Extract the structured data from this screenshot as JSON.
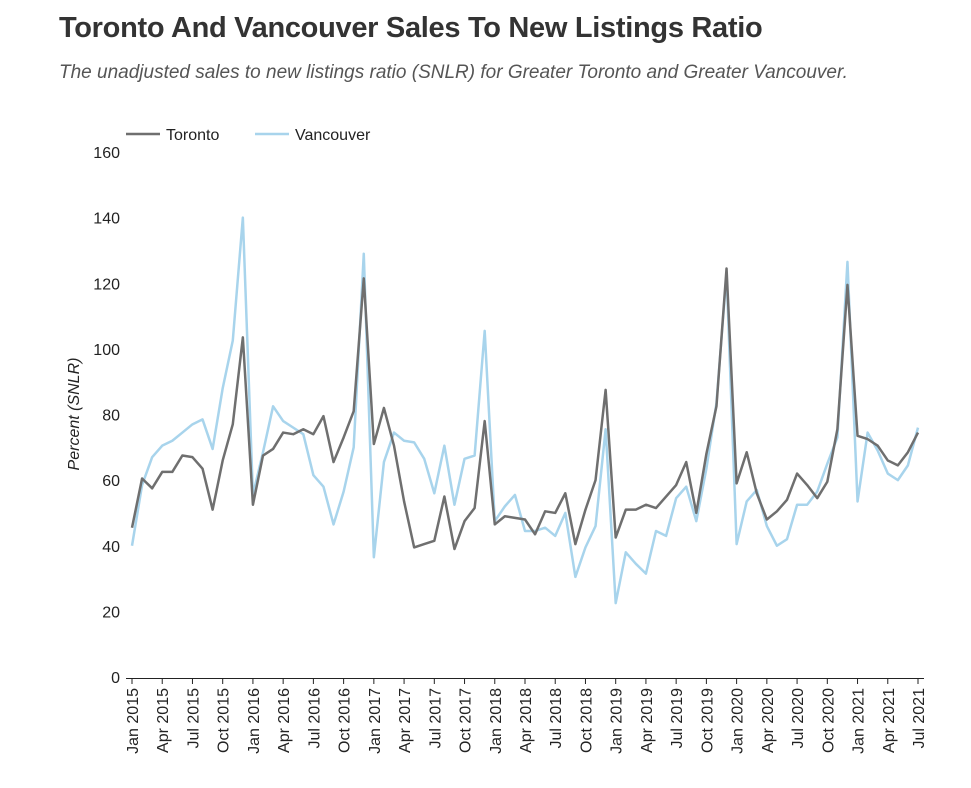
{
  "header": {
    "title": "Toronto And Vancouver Sales To New Listings Ratio",
    "subtitle": "The unadjusted sales to new listings ratio (SNLR) for Greater Toronto and Greater Vancouver."
  },
  "chart_data": {
    "type": "line",
    "ylabel": "Percent (SNLR)",
    "ylim": [
      0,
      160
    ],
    "yticks": [
      0,
      20,
      40,
      60,
      80,
      100,
      120,
      140,
      160
    ],
    "grid": false,
    "legend_placement": "top-left",
    "x": [
      "Jan 2015",
      "Feb 2015",
      "Mar 2015",
      "Apr 2015",
      "May 2015",
      "Jun 2015",
      "Jul 2015",
      "Aug 2015",
      "Sep 2015",
      "Oct 2015",
      "Nov 2015",
      "Dec 2015",
      "Jan 2016",
      "Feb 2016",
      "Mar 2016",
      "Apr 2016",
      "May 2016",
      "Jun 2016",
      "Jul 2016",
      "Aug 2016",
      "Sep 2016",
      "Oct 2016",
      "Nov 2016",
      "Dec 2016",
      "Jan 2017",
      "Feb 2017",
      "Mar 2017",
      "Apr 2017",
      "May 2017",
      "Jun 2017",
      "Jul 2017",
      "Aug 2017",
      "Sep 2017",
      "Oct 2017",
      "Nov 2017",
      "Dec 2017",
      "Jan 2018",
      "Feb 2018",
      "Mar 2018",
      "Apr 2018",
      "May 2018",
      "Jun 2018",
      "Jul 2018",
      "Aug 2018",
      "Sep 2018",
      "Oct 2018",
      "Nov 2018",
      "Dec 2018",
      "Jan 2019",
      "Feb 2019",
      "Mar 2019",
      "Apr 2019",
      "May 2019",
      "Jun 2019",
      "Jul 2019",
      "Aug 2019",
      "Sep 2019",
      "Oct 2019",
      "Nov 2019",
      "Dec 2019",
      "Jan 2020",
      "Feb 2020",
      "Mar 2020",
      "Apr 2020",
      "May 2020",
      "Jun 2020",
      "Jul 2020",
      "Aug 2020",
      "Sep 2020",
      "Oct 2020",
      "Nov 2020",
      "Dec 2020",
      "Jan 2021",
      "Feb 2021",
      "Mar 2021",
      "Apr 2021",
      "May 2021",
      "Jun 2021",
      "Jul 2021"
    ],
    "xtick_labels": [
      "Jan 2015",
      "Apr 2015",
      "Jul 2015",
      "Oct 2015",
      "Jan 2016",
      "Apr 2016",
      "Jul 2016",
      "Oct 2016",
      "Jan 2017",
      "Apr 2017",
      "Jul 2017",
      "Oct 2017",
      "Jan 2018",
      "Apr 2018",
      "Jul 2018",
      "Oct 2018",
      "Jan 2019",
      "Apr 2019",
      "Jul 2019",
      "Oct 2019",
      "Jan 2020",
      "Apr 2020",
      "Jul 2020",
      "Oct 2020",
      "Jan 2021",
      "Apr 2021",
      "Jul 2021"
    ],
    "series": [
      {
        "name": "Toronto",
        "color": "#6f6f6f",
        "values": [
          45.5,
          60.5,
          57.5,
          62.5,
          62.5,
          67.5,
          67,
          63.5,
          51,
          66,
          77,
          103.5,
          52.5,
          67.5,
          69.5,
          74.5,
          74,
          75.5,
          74,
          79.5,
          65.5,
          73,
          81,
          121.5,
          71,
          82,
          70.5,
          53.5,
          39.5,
          40.5,
          41.5,
          55,
          39,
          47.5,
          51.5,
          78,
          46.5,
          49,
          48.5,
          48,
          43.5,
          50.5,
          50,
          56,
          40.5,
          51,
          60,
          87.5,
          42.5,
          51,
          51,
          52.5,
          51.5,
          55,
          58.5,
          65.5,
          50,
          68,
          82.5,
          124.5,
          59,
          68.5,
          56,
          48,
          50.5,
          54,
          62,
          58.5,
          54.5,
          59.5,
          75.5,
          119.5,
          73.5,
          72.5,
          70.5,
          66,
          64.5,
          68.5,
          74.5
        ]
      },
      {
        "name": "Vancouver",
        "color": "#a8d4ec",
        "values": [
          40,
          58.5,
          67,
          70.5,
          72,
          74.5,
          77,
          78.5,
          69.5,
          88,
          102.5,
          140,
          55.5,
          68.5,
          82.5,
          78,
          76,
          74,
          61.5,
          58,
          46.5,
          56.5,
          70,
          129,
          36.5,
          65.5,
          74.5,
          72,
          71.5,
          66.5,
          56,
          70.5,
          52.5,
          66.5,
          67.5,
          105.5,
          47.5,
          52,
          55.5,
          44.5,
          44.5,
          45.5,
          43,
          50,
          30.5,
          39.5,
          46,
          75.5,
          22.5,
          38,
          34.5,
          31.5,
          44.5,
          43,
          54.5,
          58,
          47.5,
          63.5,
          83.5,
          123,
          40.5,
          53.5,
          57,
          46,
          40,
          42,
          52.5,
          52.5,
          56.5,
          65,
          73,
          126.5,
          53.5,
          74.5,
          69,
          62,
          60,
          64.5,
          76
        ]
      }
    ]
  }
}
